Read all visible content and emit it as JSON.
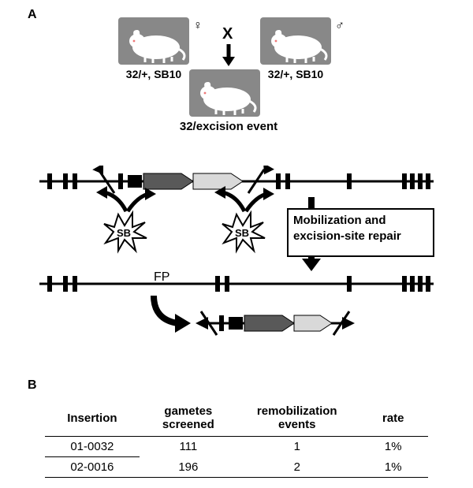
{
  "panelA": {
    "label": "A",
    "cross": {
      "left_label": "32/+, SB10",
      "right_label": "32/+, SB10",
      "offspring_label": "32/excision event",
      "cross_symbol": "X",
      "female_symbol": "♀",
      "male_symbol": "♂"
    },
    "diagram": {
      "sb_label": "SB",
      "fp_label": "FP",
      "step_label": "Mobilization and excision-site repair",
      "colors": {
        "line": "#000000",
        "arrow_dark": "#595959",
        "arrow_light": "#d9d9d9",
        "sb_fill": "#ffffff",
        "bg": "#ffffff"
      }
    }
  },
  "panelB": {
    "label": "B",
    "table": {
      "headers": [
        "Insertion",
        "gametes screened",
        "remobilization events",
        "rate"
      ],
      "rows": [
        [
          "01-0032",
          "111",
          "1",
          "1%"
        ],
        [
          "02-0016",
          "196",
          "2",
          "1%"
        ]
      ]
    }
  }
}
